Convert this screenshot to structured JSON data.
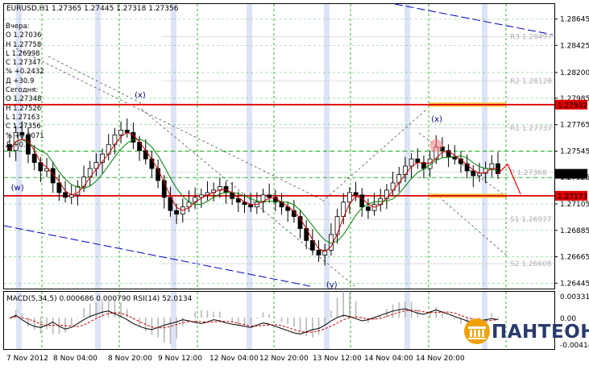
{
  "window": {
    "symbol_label": "EURUSD,H1",
    "ohlc_label": "1.27365 1.27445 1.27318 1.27356"
  },
  "info_panel": [
    "Вчера:",
    "O 1.27036",
    "H 1.27758",
    "L 1.26998",
    "C 1.27347",
    "% +0.2432",
    "Д +30.9",
    "Сегодня:",
    "O 1.27348",
    "H 1.27526",
    "L 1.27163",
    "C 1.27356",
    "% +0.0071",
    "Д +0.9"
  ],
  "wave_labels": [
    {
      "text": "(w)",
      "x": "7 Nov 2012 20:00",
      "y": 1.2722
    },
    {
      "text": "(x)",
      "x": "8 Nov 2012 21:00",
      "y": 1.2799
    },
    {
      "text": "(y)",
      "x": "13 Nov 2012 0:00",
      "y": 1.2641
    },
    {
      "text": "(x)",
      "x": "14 Nov 2012 11:00",
      "y": 1.2779
    }
  ],
  "levels": [
    {
      "label": "R3",
      "value": 1.28497,
      "text": "R3 1.28497"
    },
    {
      "label": "R2",
      "value": 1.28128,
      "text": "R2 1.28128"
    },
    {
      "label": "R1",
      "value": 1.27737,
      "text": "R1 1.27737"
    },
    {
      "label": "P",
      "value": 1.27368,
      "text": "P 1.27368"
    },
    {
      "label": "S1",
      "value": 1.26977,
      "text": "S1 1.26977"
    },
    {
      "label": "S2",
      "value": 1.26608,
      "text": "S2 1.26608"
    }
  ],
  "resistance_label": "1.27932",
  "support_label": "1.27173",
  "current_price_label": "1.27356",
  "chart_data": {
    "type": "candlestick",
    "symbol": "EURUSD",
    "timeframe": "H1",
    "open": 1.27365,
    "high": 1.27445,
    "low": 1.27318,
    "close": 1.27356,
    "x": [
      "7 Nov 2012",
      "8 Nov 04:00",
      "8 Nov 20:00",
      "9 Nov 12:00",
      "12 Nov 04:00",
      "12 Nov 20:00",
      "13 Nov 12:00",
      "14 Nov 04:00",
      "14 Nov 20:00"
    ],
    "y_ticks": [
      "1.28645",
      "1.28425",
      "1.28200",
      "1.27985",
      "1.27765",
      "1.27545",
      "1.27325",
      "1.27105",
      "1.26885",
      "1.26665",
      "1.26445"
    ],
    "ylim": [
      1.264,
      1.2877
    ],
    "close_series": [
      1.2755,
      1.277,
      1.2768,
      1.2752,
      1.2745,
      1.2738,
      1.274,
      1.2728,
      1.272,
      1.2716,
      1.2718,
      1.2725,
      1.2733,
      1.274,
      1.2745,
      1.2752,
      1.276,
      1.2768,
      1.2772,
      1.277,
      1.2762,
      1.2755,
      1.2748,
      1.274,
      1.273,
      1.2716,
      1.2705,
      1.2702,
      1.2708,
      1.2712,
      1.2716,
      1.2718,
      1.272,
      1.2722,
      1.2725,
      1.272,
      1.2715,
      1.2712,
      1.271,
      1.2708,
      1.2712,
      1.2718,
      1.2716,
      1.2712,
      1.2708,
      1.2705,
      1.27,
      1.269,
      1.268,
      1.2672,
      1.2668,
      1.2672,
      1.2685,
      1.27,
      1.2712,
      1.272,
      1.2718,
      1.2708,
      1.2705,
      1.271,
      1.2715,
      1.2722,
      1.2728,
      1.2735,
      1.2742,
      1.2748,
      1.2745,
      1.274,
      1.2748,
      1.2758,
      1.2755,
      1.275,
      1.2748,
      1.2744,
      1.2738,
      1.2734,
      1.2736,
      1.274,
      1.2744,
      1.27356
    ],
    "indicators": {
      "macd_label": "MACD(5,34,5) 0.000686 0.000790",
      "rsi_label": "RSI(14) 52.0134",
      "macd_ticks": [
        "0.003319",
        "0.00",
        "-0.00414"
      ],
      "rsi_series": [
        55,
        60,
        52,
        45,
        40,
        38,
        42,
        48,
        40,
        35,
        38,
        45,
        52,
        58,
        62,
        66,
        68,
        63,
        58,
        52,
        45,
        40,
        36,
        34,
        38,
        42,
        45,
        48,
        52,
        50,
        47,
        45,
        48,
        52,
        50,
        46,
        44,
        42,
        40,
        38,
        42,
        46,
        44,
        40,
        36,
        32,
        28,
        26,
        30,
        34,
        36,
        42,
        50,
        56,
        60,
        58,
        54,
        50,
        52,
        56,
        60,
        64,
        68,
        70,
        72,
        68,
        64,
        62,
        66,
        70,
        66,
        62,
        58,
        54,
        50,
        48,
        50,
        52,
        54,
        52
      ]
    }
  },
  "brand": "ПАНТЕОН",
  "colors": {
    "up": "#000000",
    "down": "#000000",
    "ma_fast": "#cc0000",
    "ma_slow": "#008000",
    "resistance": "#dd0000",
    "support": "#dd0000",
    "channel": "#0000cc",
    "highlight": "#f5c842",
    "session": "#dde4f7",
    "logo": "#f0a000"
  }
}
